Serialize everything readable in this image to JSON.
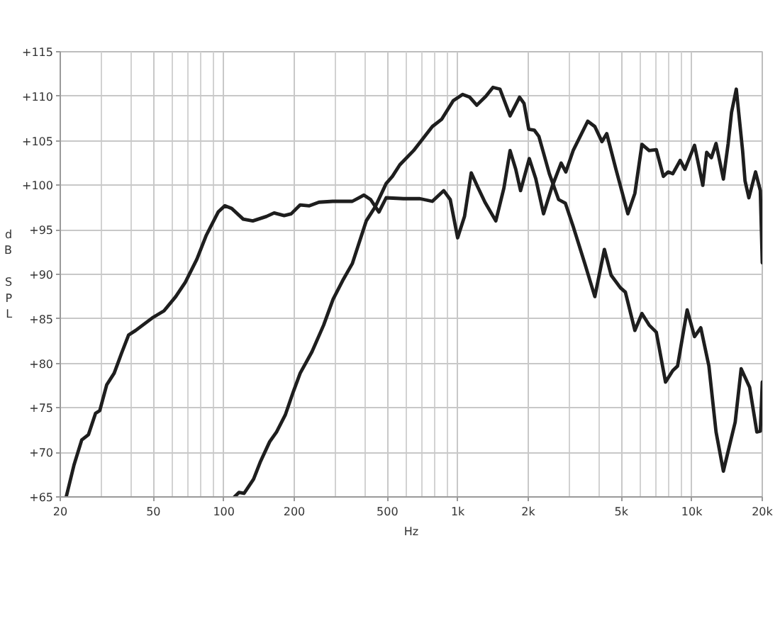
{
  "chart_data": {
    "type": "line",
    "xlabel": "Hz",
    "ylabel": "d\nB\n\nS\nP\nL",
    "log": "x",
    "grid": true,
    "line_style": "solid",
    "xlim": [
      20,
      20000
    ],
    "ylim": [
      65,
      115
    ],
    "xticks": [
      20,
      {
        "value": 30,
        "label": null
      },
      {
        "value": 40,
        "label": null
      },
      50,
      {
        "value": 60,
        "label": null
      },
      {
        "value": 70,
        "label": null
      },
      {
        "value": 80,
        "label": null
      },
      {
        "value": 90,
        "label": null
      },
      100,
      200,
      {
        "value": 300,
        "label": null
      },
      {
        "value": 400,
        "label": null
      },
      500,
      {
        "value": 600,
        "label": null
      },
      {
        "value": 700,
        "label": null
      },
      {
        "value": 800,
        "label": null
      },
      {
        "value": 900,
        "label": null
      },
      {
        "value": 1000,
        "label": "1k"
      },
      {
        "value": 2000,
        "label": "2k"
      },
      {
        "value": 3000,
        "label": null
      },
      {
        "value": 4000,
        "label": null
      },
      {
        "value": 5000,
        "label": "5k"
      },
      {
        "value": 6000,
        "label": null
      },
      {
        "value": 7000,
        "label": null
      },
      {
        "value": 8000,
        "label": null
      },
      {
        "value": 9000,
        "label": null
      },
      {
        "value": 10000,
        "label": "10k"
      },
      {
        "value": 20000,
        "label": "20k"
      }
    ],
    "yticks": [
      {
        "value": 65,
        "label": "+65"
      },
      {
        "value": 70,
        "label": "+70"
      },
      {
        "value": 75,
        "label": "+75"
      },
      {
        "value": 80,
        "label": "+80"
      },
      {
        "value": 85,
        "label": "+85"
      },
      {
        "value": 90,
        "label": "+90"
      },
      {
        "value": 95,
        "label": "+95"
      },
      {
        "value": 100,
        "label": "+100"
      },
      {
        "value": 105,
        "label": "+105"
      },
      {
        "value": 110,
        "label": "+110"
      },
      {
        "value": 115,
        "label": "+115"
      }
    ],
    "series": [
      {
        "color": "#1e1e1e",
        "x": [
          21.2,
          22.9,
          24.7,
          26.4,
          28.3,
          29.5,
          31.6,
          34,
          36.5,
          39.2,
          42,
          49.4,
          55.5,
          62.3,
          68.4,
          76.7,
          84.2,
          94.6,
          101,
          108,
          121,
          133,
          152,
          164,
          181,
          194,
          212,
          232,
          255,
          292,
          354,
          397,
          424,
          460,
          494,
          586,
          689,
          778,
          870,
          928,
          998,
          1068,
          1141,
          1222,
          1306,
          1453,
          1574,
          1672,
          1768,
          1854,
          2020,
          2155,
          2324,
          2516,
          2763,
          2895,
          3110,
          3590,
          3850,
          4130,
          4330,
          4740,
          5330,
          5710,
          6120,
          6570,
          7050,
          7560,
          7920,
          8290,
          8920,
          9340,
          10270,
          11140,
          11570,
          12120,
          12690,
          13640,
          14300,
          14780,
          15490,
          16480,
          16880,
          17530,
          18720,
          19620,
          20000
        ],
        "values": [
          65,
          68.6,
          71.4,
          72,
          74.4,
          74.7,
          77.6,
          78.9,
          81.1,
          83.2,
          83.7,
          85.1,
          85.9,
          87.5,
          89.1,
          91.7,
          94.4,
          97,
          97.7,
          97.4,
          96.2,
          96,
          96.5,
          96.9,
          96.6,
          96.8,
          97.8,
          97.7,
          98.1,
          98.2,
          98.2,
          98.9,
          98.4,
          97,
          98.6,
          98.5,
          98.5,
          98.2,
          99.4,
          98.4,
          94.1,
          96.5,
          101.4,
          99.7,
          98.1,
          96,
          99.7,
          103.9,
          101.8,
          99.4,
          103,
          100.7,
          96.8,
          99.7,
          102.5,
          101.5,
          103.9,
          107.2,
          106.6,
          104.9,
          105.8,
          101.8,
          96.8,
          99.1,
          104.6,
          103.9,
          104,
          101,
          101.5,
          101.3,
          102.8,
          101.8,
          104.5,
          100,
          103.7,
          103.1,
          104.7,
          100.7,
          104.7,
          108.2,
          110.8,
          103.9,
          100.5,
          98.6,
          101.5,
          99.4,
          91.3
        ]
      },
      {
        "color": "#1e1e1e",
        "x": [
          111,
          116,
          122,
          134,
          143,
          157,
          168,
          183,
          198,
          212,
          238,
          267,
          293,
          322,
          354,
          406,
          444,
          494,
          525,
          565,
          647,
          778,
          852,
          956,
          1048,
          1124,
          1205,
          1318,
          1413,
          1514,
          1672,
          1836,
          1918,
          2009,
          2121,
          2220,
          2461,
          2696,
          2880,
          3110,
          3490,
          3850,
          4230,
          4520,
          4950,
          5200,
          5710,
          6120,
          6570,
          7050,
          7720,
          8290,
          8690,
          9550,
          10270,
          10920,
          11830,
          12690,
          13640,
          14620,
          15320,
          16250,
          17670,
          18960,
          19620,
          20000
        ],
        "values": [
          65,
          65.5,
          65.4,
          67,
          68.9,
          71.2,
          72.3,
          74.2,
          76.8,
          78.9,
          81.3,
          84.3,
          87.2,
          89.3,
          91.2,
          96,
          97.6,
          100.2,
          101,
          102.3,
          103.9,
          106.6,
          107.4,
          109.5,
          110.2,
          109.9,
          109,
          110,
          111,
          110.8,
          107.8,
          109.9,
          109.2,
          106.3,
          106.2,
          105.5,
          101.3,
          98.4,
          98,
          95.4,
          91.2,
          87.5,
          92.8,
          89.9,
          88.5,
          88,
          83.7,
          85.6,
          84.3,
          83.5,
          77.9,
          79.2,
          79.7,
          86,
          83,
          84,
          79.7,
          72.3,
          67.9,
          71.2,
          73.4,
          79.4,
          77.3,
          72.3,
          72.4,
          77.9
        ]
      }
    ]
  }
}
